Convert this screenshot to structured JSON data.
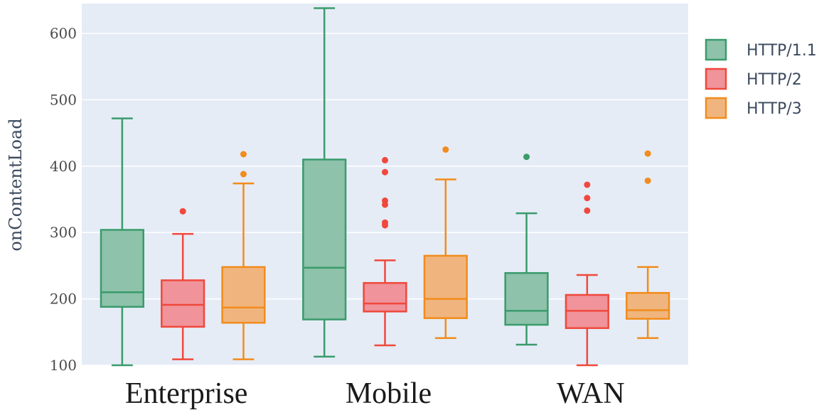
{
  "chart_data": {
    "type": "box",
    "ylabel": "onContentLoad",
    "ylim": [
      100,
      645
    ],
    "yticks": [
      100,
      200,
      300,
      400,
      500,
      600
    ],
    "categories": [
      "Enterprise",
      "Mobile",
      "WAN"
    ],
    "grid": true,
    "legend_position": "right",
    "series": [
      {
        "name": "HTTP/1.1",
        "color": "#3a9b6b",
        "fill": "#8ec2aa",
        "boxes": [
          {
            "min": 100,
            "q1": 188,
            "median": 210,
            "q3": 304,
            "max": 472,
            "outliers": []
          },
          {
            "min": 113,
            "q1": 169,
            "median": 247,
            "q3": 410,
            "max": 638,
            "outliers": []
          },
          {
            "min": 131,
            "q1": 161,
            "median": 182,
            "q3": 239,
            "max": 329,
            "outliers": [
              414
            ]
          }
        ]
      },
      {
        "name": "HTTP/2",
        "color": "#f0483c",
        "fill": "#f0939a",
        "boxes": [
          {
            "min": 109,
            "q1": 158,
            "median": 191,
            "q3": 228,
            "max": 298,
            "outliers": [
              332
            ]
          },
          {
            "min": 130,
            "q1": 181,
            "median": 193,
            "q3": 224,
            "max": 258,
            "outliers": [
              311,
              315,
              342,
              348,
              391,
              409
            ]
          },
          {
            "min": 100,
            "q1": 156,
            "median": 182,
            "q3": 206,
            "max": 236,
            "outliers": [
              333,
              352,
              372
            ]
          }
        ]
      },
      {
        "name": "HTTP/3",
        "color": "#f28c1c",
        "fill": "#f0b57e",
        "boxes": [
          {
            "min": 109,
            "q1": 164,
            "median": 187,
            "q3": 248,
            "max": 374,
            "outliers": [
              388,
              418
            ]
          },
          {
            "min": 141,
            "q1": 171,
            "median": 200,
            "q3": 265,
            "max": 380,
            "outliers": [
              425
            ]
          },
          {
            "min": 141,
            "q1": 170,
            "median": 183,
            "q3": 209,
            "max": 248,
            "outliers": [
              378,
              419
            ]
          }
        ]
      }
    ]
  }
}
